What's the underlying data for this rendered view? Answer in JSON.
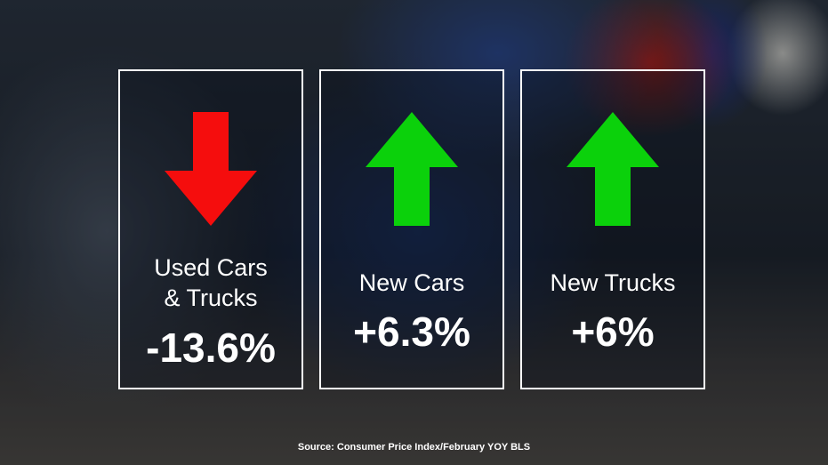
{
  "cards": [
    {
      "label": "Used Cars & Trucks",
      "value": "-13.6%"
    },
    {
      "label": "New Cars",
      "value": "+6.3%"
    },
    {
      "label": "New Trucks",
      "value": "+6%"
    }
  ],
  "source": "Source: Consumer Price Index/February YOY BLS"
}
